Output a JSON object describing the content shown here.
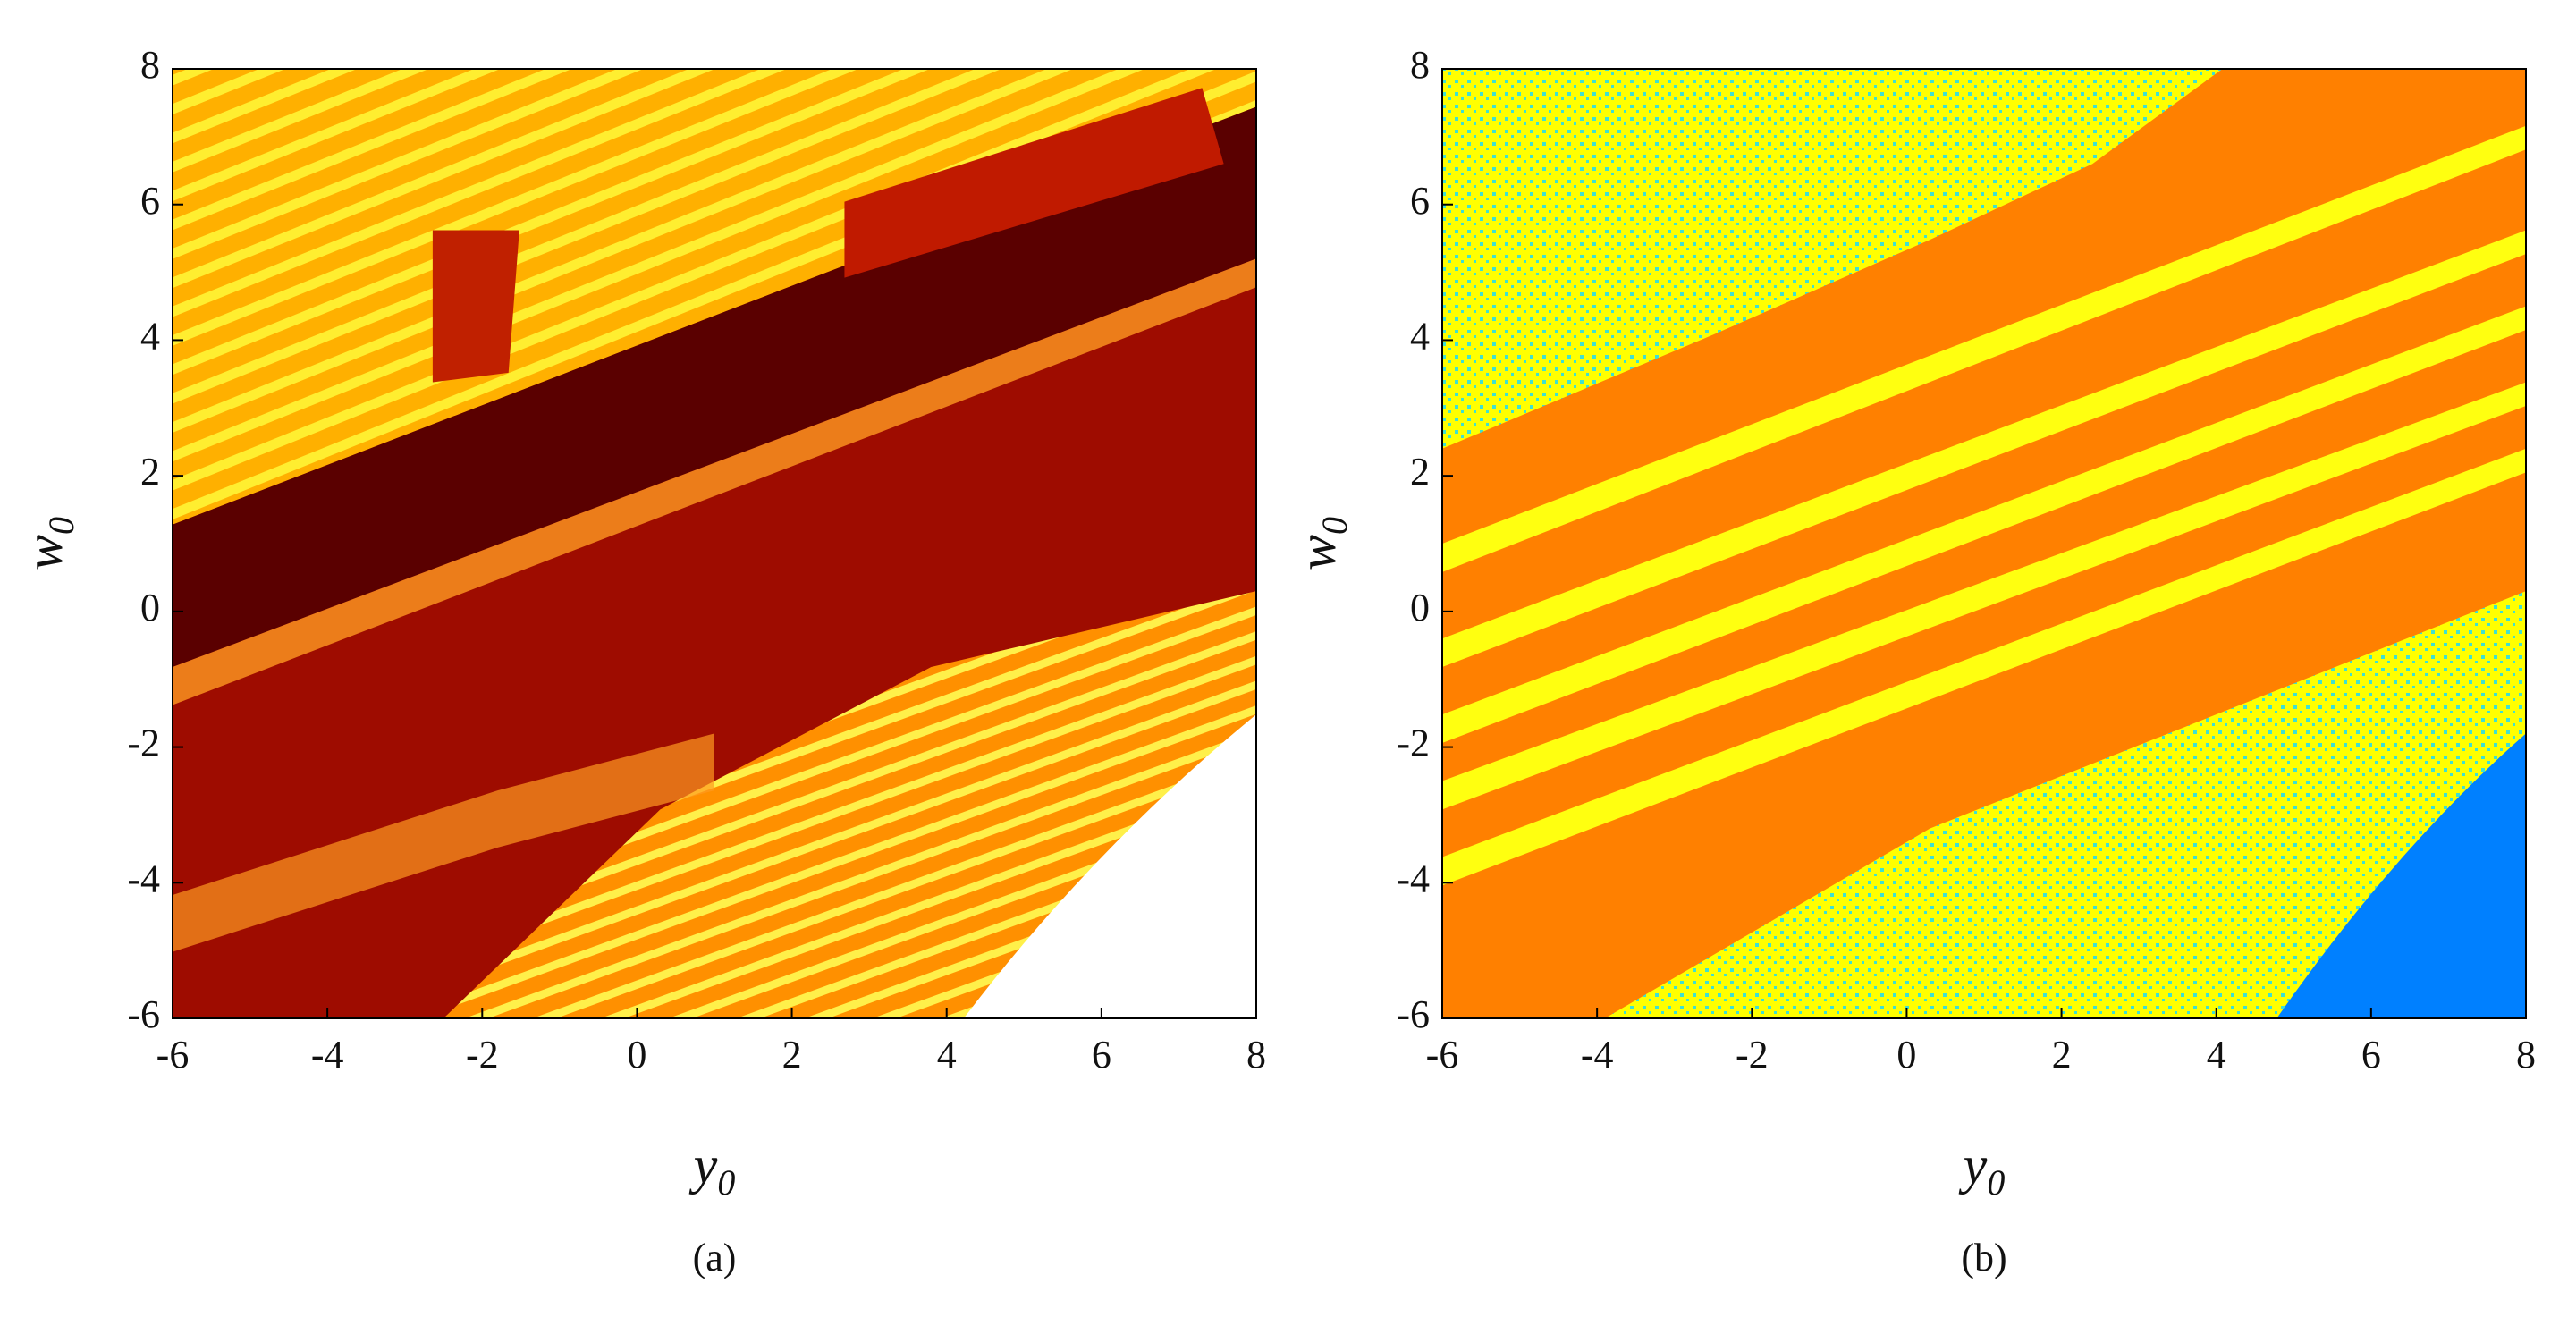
{
  "chart_data": [
    {
      "type": "heatmap",
      "xlim": [
        -6,
        8
      ],
      "ylim": [
        -6,
        8
      ],
      "xticks": [
        -6,
        -4,
        -2,
        0,
        2,
        4,
        6,
        8
      ],
      "yticks": [
        -6,
        -4,
        -2,
        0,
        2,
        4,
        6,
        8
      ],
      "x_label": "y",
      "x_label_subscript": "0",
      "y_label": "w",
      "y_label_subscript": "0",
      "caption": "(a)"
    },
    {
      "type": "heatmap",
      "xlim": [
        -6,
        8
      ],
      "ylim": [
        -6,
        8
      ],
      "xticks": [
        -6,
        -4,
        -2,
        0,
        2,
        4,
        6,
        8
      ],
      "yticks": [
        -6,
        -4,
        -2,
        0,
        2,
        4,
        6,
        8
      ],
      "x_label": "y",
      "x_label_subscript": "0",
      "y_label": "w",
      "y_label_subscript": "0",
      "caption": "(b)"
    }
  ]
}
